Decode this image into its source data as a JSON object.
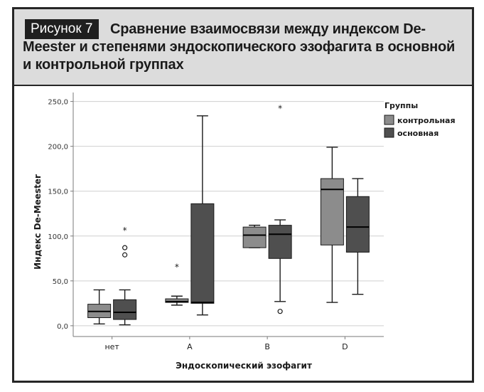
{
  "figure": {
    "label": "Рисунок 7",
    "title": "Сравнение взаимосвязи между индексом De-Meester и степенями эндоскопического эзофагита в основной и контрольной группах"
  },
  "chart_data": {
    "type": "boxplot",
    "title": "Сравнение взаимосвязи между индексом De-Meester и степенями эндоскопического эзофагита в основной и контрольной группах",
    "xlabel": "Эндоскопический эзофагит",
    "ylabel": "Индекс De-Meester",
    "ylim": [
      -12,
      260
    ],
    "yticks": [
      "0,0",
      "50,0",
      "100,0",
      "150,0",
      "200,0",
      "250,0"
    ],
    "ytick_values": [
      0,
      50,
      100,
      150,
      200,
      250
    ],
    "grid": true,
    "categories": [
      "нет",
      "A",
      "B",
      "D"
    ],
    "legend": {
      "title": "Группы",
      "position": "top-right",
      "entries": [
        {
          "name": "контрольная",
          "color": "#8c8c8c"
        },
        {
          "name": "основная",
          "color": "#4f4f4f"
        }
      ]
    },
    "series": [
      {
        "name": "контрольная",
        "color": "#8c8c8c",
        "boxes": [
          {
            "category": "нет",
            "min": 2,
            "q1": 9,
            "median": 16,
            "q3": 24,
            "max": 40,
            "outliers": [],
            "extremes": []
          },
          {
            "category": "A",
            "min": 23,
            "q1": 26,
            "median": 27,
            "q3": 30,
            "max": 33,
            "outliers": [],
            "extremes": [
              66
            ]
          },
          {
            "category": "B",
            "min": 87,
            "q1": 87,
            "median": 101,
            "q3": 110,
            "max": 112,
            "outliers": [],
            "extremes": []
          },
          {
            "category": "D",
            "min": 26,
            "q1": 90,
            "median": 152,
            "q3": 164,
            "max": 199,
            "outliers": [],
            "extremes": []
          }
        ]
      },
      {
        "name": "основная",
        "color": "#4f4f4f",
        "boxes": [
          {
            "category": "нет",
            "min": 1,
            "q1": 7,
            "median": 15,
            "q3": 29,
            "max": 40,
            "outliers": [
              79,
              87
            ],
            "extremes": [
              107
            ]
          },
          {
            "category": "A",
            "min": 12,
            "q1": 25,
            "median": 26,
            "q3": 136,
            "max": 234,
            "outliers": [],
            "extremes": []
          },
          {
            "category": "B",
            "min": 27,
            "q1": 75,
            "median": 102,
            "q3": 112,
            "max": 118,
            "outliers": [
              16
            ],
            "extremes": [
              243
            ]
          },
          {
            "category": "D",
            "min": 35,
            "q1": 82,
            "median": 110,
            "q3": 144,
            "max": 164,
            "outliers": [],
            "extremes": []
          }
        ]
      }
    ]
  }
}
